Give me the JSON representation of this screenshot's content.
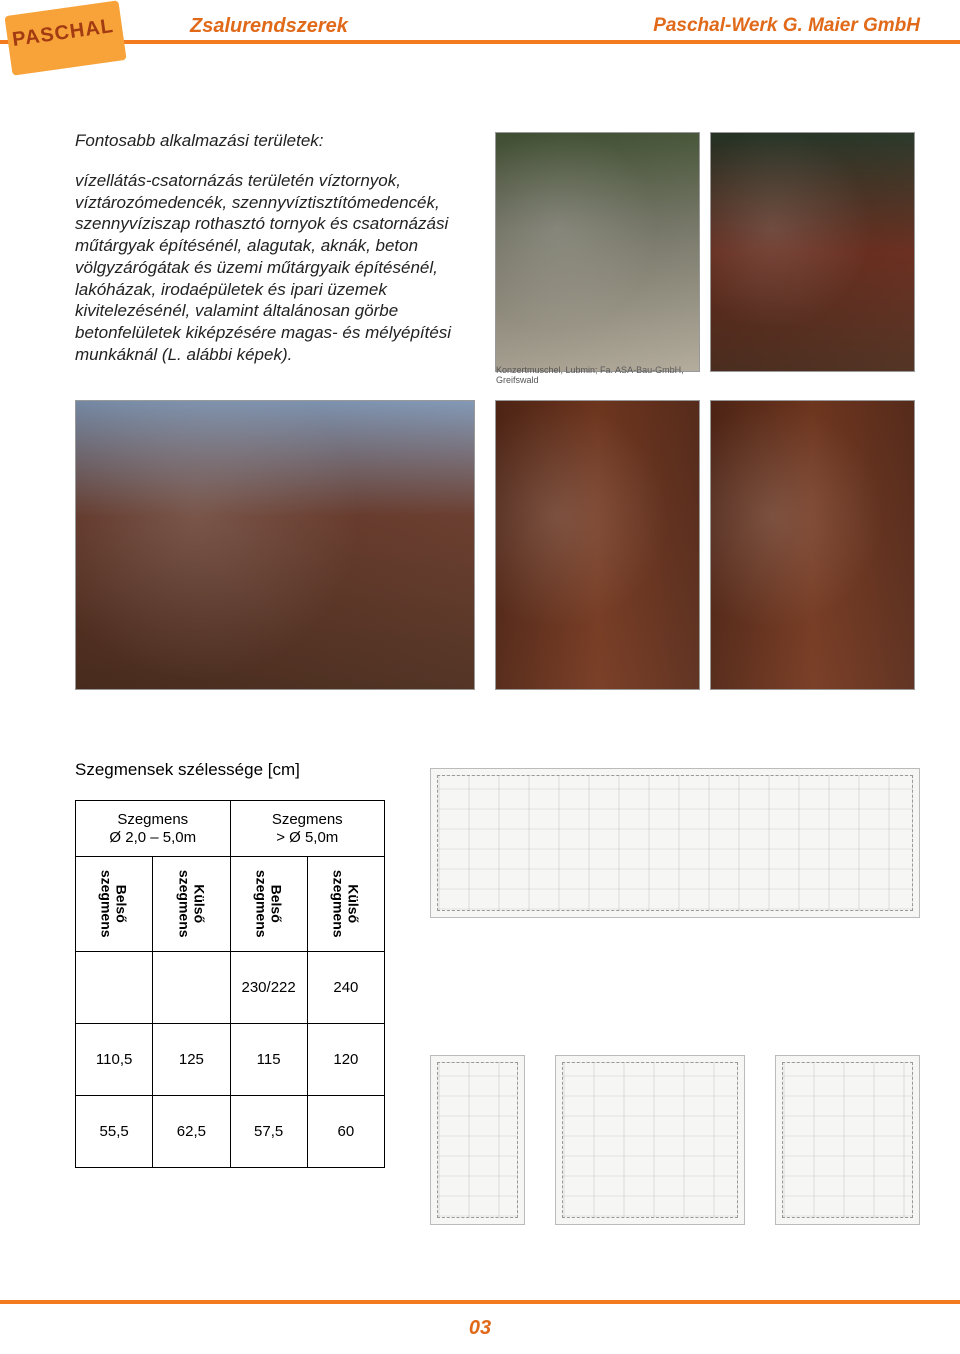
{
  "colors": {
    "orange": "#f47a1f",
    "logo_bg": "#f7a33a",
    "logo_text": "#a23a12",
    "header_text": "#e06a1a",
    "body_text": "#222222"
  },
  "header": {
    "brand": "Zsalurendszerek",
    "company": "Paschal-Werk G. Maier GmbH",
    "logo_text": "PASCHAL"
  },
  "body": {
    "heading": "Fontosabb alkalmazási területek:",
    "paragraph": "vízellátás-csatornázás területén víztornyok, víztározómedencék, szennyvíztisztítómedencék, szennyvíziszap rothasztó tornyok és csatornázási műtárgyak építésénél, alagutak, aknák, beton völgyzárógátak és üzemi műtárgyaik építésénél, lakóházak, irodaépületek és ipari üzemek kivitelezésénél, valamint általánosan görbe betonfelületek kiképzésére magas- és mélyépítési munkáknál (L. alábbi képek)."
  },
  "photo1_caption": "Konzertmuschel, Lubmin; Fa. ASA-Bau-GmbH, Greifswald",
  "table": {
    "title": "Szegmensek szélessége [cm]",
    "group1_line1": "Szegmens",
    "group1_line2": "Ø 2,0 – 5,0m",
    "group2_line1": "Szegmens",
    "group2_line2": "> Ø 5,0m",
    "col_inner": "Belső\nszegmens",
    "col_outer": "Külső\nszegmens",
    "rows": [
      [
        "",
        "",
        "230/222",
        "240"
      ],
      [
        "110,5",
        "125",
        "115",
        "120"
      ],
      [
        "55,5",
        "62,5",
        "57,5",
        "60"
      ]
    ]
  },
  "page_number": "03"
}
